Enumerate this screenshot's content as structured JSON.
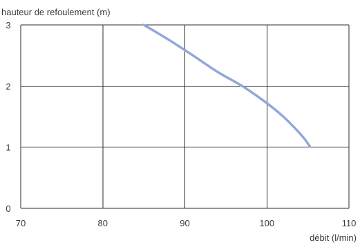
{
  "chart_data": {
    "type": "line",
    "ylabel": "hauteur de refoulement (m)",
    "xlabel": "débit (l/min)",
    "xlim": [
      70,
      110
    ],
    "ylim": [
      0,
      3
    ],
    "x_ticks": [
      70,
      80,
      90,
      100,
      110
    ],
    "y_ticks": [
      0,
      1,
      2,
      3
    ],
    "grid": true,
    "series": [
      {
        "color": "#93a7d9",
        "x": [
          85.0,
          88.0,
          91.0,
          94.0,
          97.0,
          100.0,
          102.0,
          103.5,
          104.5,
          105.2
        ],
        "y": [
          3.0,
          2.76,
          2.5,
          2.23,
          2.0,
          1.72,
          1.5,
          1.3,
          1.15,
          1.02
        ]
      }
    ]
  }
}
